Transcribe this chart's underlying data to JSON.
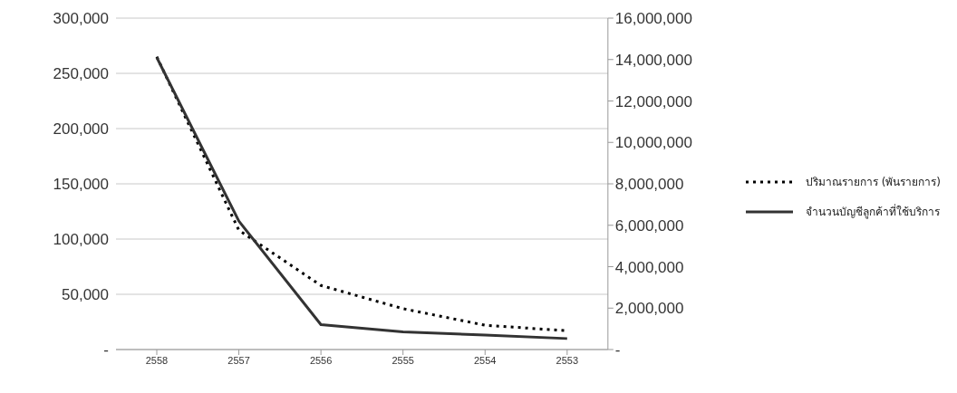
{
  "chart_data": {
    "type": "line",
    "categories": [
      "2558",
      "2557",
      "2556",
      "2555",
      "2554",
      "2553"
    ],
    "series": [
      {
        "name": "ปริมาณรายการ (พันรายการ)",
        "color": "#000000",
        "line_style": "dotted",
        "values": [
          265000,
          108000,
          58000,
          37000,
          22000,
          17000
        ]
      },
      {
        "name": "จำนวนบัญชีลูกค้าที่ใช้บริการ",
        "color": "#333333",
        "line_style": "solid",
        "axis": "y2",
        "values": [
          14100000,
          6200000,
          1200000,
          850000,
          700000,
          530000
        ]
      }
    ],
    "ylim": [
      0,
      300000
    ],
    "yticks": [
      {
        "value": 0,
        "label": "-"
      },
      {
        "value": 50000,
        "label": "50,000"
      },
      {
        "value": 100000,
        "label": "100,000"
      },
      {
        "value": 150000,
        "label": "150,000"
      },
      {
        "value": 200000,
        "label": "200,000"
      },
      {
        "value": 250000,
        "label": "250,000"
      },
      {
        "value": 300000,
        "label": "300,000"
      }
    ],
    "y2lim": [
      0,
      16000000
    ],
    "y2ticks": [
      {
        "value": 0,
        "label": "-"
      },
      {
        "value": 2000000,
        "label": "2,000,000"
      },
      {
        "value": 4000000,
        "label": "4,000,000"
      },
      {
        "value": 6000000,
        "label": "6,000,000"
      },
      {
        "value": 8000000,
        "label": "8,000,000"
      },
      {
        "value": 10000000,
        "label": "10,000,000"
      },
      {
        "value": 12000000,
        "label": "12,000,000"
      },
      {
        "value": 14000000,
        "label": "14,000,000"
      },
      {
        "value": 16000000,
        "label": "16,000,000"
      }
    ],
    "grid": "y",
    "legend": "right",
    "marker": "none"
  }
}
